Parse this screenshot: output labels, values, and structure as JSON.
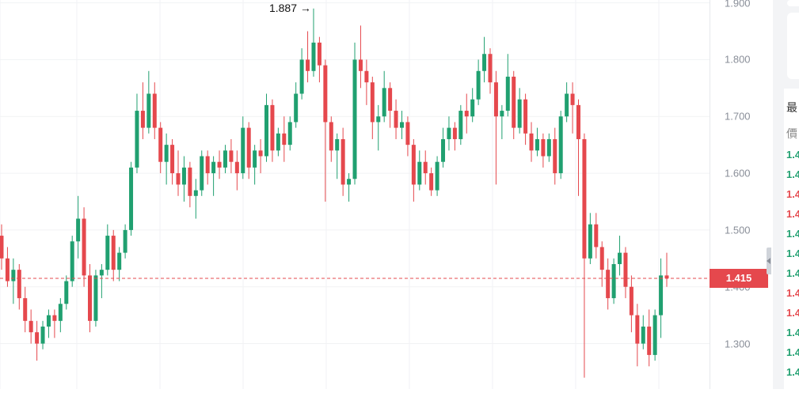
{
  "chart_data": {
    "type": "candlestick",
    "ylim": [
      1.22,
      1.905
    ],
    "grid": true,
    "y_ticks": [
      "1.900",
      "1.800",
      "1.700",
      "1.600",
      "1.500",
      "1.400",
      "1.300"
    ],
    "current_price": "1.415",
    "peak_annotation": "1.887 →",
    "colors": {
      "up": "#20a070",
      "down": "#e5484d"
    },
    "candles": [
      [
        1.49,
        1.51,
        1.43,
        1.45
      ],
      [
        1.45,
        1.47,
        1.4,
        1.41
      ],
      [
        1.41,
        1.45,
        1.37,
        1.43
      ],
      [
        1.43,
        1.44,
        1.36,
        1.38
      ],
      [
        1.38,
        1.4,
        1.32,
        1.34
      ],
      [
        1.34,
        1.36,
        1.3,
        1.32
      ],
      [
        1.32,
        1.34,
        1.27,
        1.3
      ],
      [
        1.3,
        1.34,
        1.29,
        1.33
      ],
      [
        1.33,
        1.36,
        1.31,
        1.35
      ],
      [
        1.35,
        1.36,
        1.31,
        1.34
      ],
      [
        1.34,
        1.38,
        1.32,
        1.37
      ],
      [
        1.37,
        1.42,
        1.36,
        1.41
      ],
      [
        1.41,
        1.49,
        1.4,
        1.48
      ],
      [
        1.48,
        1.56,
        1.45,
        1.52
      ],
      [
        1.52,
        1.54,
        1.4,
        1.42
      ],
      [
        1.42,
        1.44,
        1.32,
        1.34
      ],
      [
        1.34,
        1.43,
        1.33,
        1.42
      ],
      [
        1.42,
        1.44,
        1.38,
        1.43
      ],
      [
        1.43,
        1.51,
        1.42,
        1.49
      ],
      [
        1.49,
        1.5,
        1.41,
        1.43
      ],
      [
        1.43,
        1.47,
        1.41,
        1.46
      ],
      [
        1.46,
        1.51,
        1.45,
        1.5
      ],
      [
        1.5,
        1.62,
        1.49,
        1.61
      ],
      [
        1.61,
        1.74,
        1.6,
        1.71
      ],
      [
        1.71,
        1.76,
        1.66,
        1.68
      ],
      [
        1.68,
        1.78,
        1.67,
        1.74
      ],
      [
        1.74,
        1.76,
        1.66,
        1.68
      ],
      [
        1.68,
        1.69,
        1.6,
        1.62
      ],
      [
        1.62,
        1.67,
        1.58,
        1.65
      ],
      [
        1.65,
        1.66,
        1.58,
        1.6
      ],
      [
        1.6,
        1.64,
        1.56,
        1.58
      ],
      [
        1.58,
        1.63,
        1.55,
        1.61
      ],
      [
        1.61,
        1.62,
        1.54,
        1.56
      ],
      [
        1.56,
        1.59,
        1.52,
        1.57
      ],
      [
        1.57,
        1.64,
        1.56,
        1.63
      ],
      [
        1.63,
        1.64,
        1.58,
        1.6
      ],
      [
        1.6,
        1.63,
        1.56,
        1.62
      ],
      [
        1.62,
        1.64,
        1.59,
        1.61
      ],
      [
        1.61,
        1.65,
        1.6,
        1.64
      ],
      [
        1.64,
        1.66,
        1.6,
        1.62
      ],
      [
        1.62,
        1.64,
        1.57,
        1.6
      ],
      [
        1.6,
        1.7,
        1.59,
        1.68
      ],
      [
        1.68,
        1.69,
        1.59,
        1.61
      ],
      [
        1.61,
        1.65,
        1.58,
        1.64
      ],
      [
        1.64,
        1.66,
        1.6,
        1.63
      ],
      [
        1.63,
        1.74,
        1.62,
        1.72
      ],
      [
        1.72,
        1.73,
        1.62,
        1.64
      ],
      [
        1.64,
        1.68,
        1.63,
        1.67
      ],
      [
        1.67,
        1.7,
        1.62,
        1.65
      ],
      [
        1.65,
        1.7,
        1.64,
        1.69
      ],
      [
        1.69,
        1.76,
        1.68,
        1.74
      ],
      [
        1.74,
        1.82,
        1.73,
        1.8
      ],
      [
        1.8,
        1.85,
        1.76,
        1.78
      ],
      [
        1.78,
        1.89,
        1.77,
        1.83
      ],
      [
        1.83,
        1.84,
        1.76,
        1.79
      ],
      [
        1.79,
        1.8,
        1.55,
        1.69
      ],
      [
        1.69,
        1.7,
        1.62,
        1.64
      ],
      [
        1.64,
        1.67,
        1.59,
        1.66
      ],
      [
        1.66,
        1.68,
        1.56,
        1.58
      ],
      [
        1.58,
        1.6,
        1.55,
        1.59
      ],
      [
        1.59,
        1.83,
        1.58,
        1.8
      ],
      [
        1.8,
        1.86,
        1.75,
        1.78
      ],
      [
        1.78,
        1.8,
        1.72,
        1.76
      ],
      [
        1.76,
        1.77,
        1.66,
        1.69
      ],
      [
        1.69,
        1.72,
        1.64,
        1.7
      ],
      [
        1.7,
        1.78,
        1.69,
        1.75
      ],
      [
        1.75,
        1.76,
        1.68,
        1.71
      ],
      [
        1.71,
        1.73,
        1.66,
        1.68
      ],
      [
        1.68,
        1.71,
        1.66,
        1.69
      ],
      [
        1.69,
        1.7,
        1.63,
        1.65
      ],
      [
        1.65,
        1.66,
        1.55,
        1.58
      ],
      [
        1.58,
        1.64,
        1.57,
        1.62
      ],
      [
        1.62,
        1.64,
        1.58,
        1.6
      ],
      [
        1.6,
        1.61,
        1.56,
        1.57
      ],
      [
        1.57,
        1.63,
        1.56,
        1.62
      ],
      [
        1.62,
        1.68,
        1.61,
        1.66
      ],
      [
        1.66,
        1.7,
        1.64,
        1.68
      ],
      [
        1.68,
        1.69,
        1.64,
        1.66
      ],
      [
        1.66,
        1.72,
        1.65,
        1.71
      ],
      [
        1.71,
        1.74,
        1.67,
        1.7
      ],
      [
        1.7,
        1.75,
        1.69,
        1.73
      ],
      [
        1.73,
        1.8,
        1.72,
        1.78
      ],
      [
        1.78,
        1.84,
        1.76,
        1.81
      ],
      [
        1.81,
        1.82,
        1.74,
        1.76
      ],
      [
        1.76,
        1.78,
        1.58,
        1.7
      ],
      [
        1.7,
        1.72,
        1.66,
        1.71
      ],
      [
        1.71,
        1.81,
        1.7,
        1.77
      ],
      [
        1.77,
        1.78,
        1.66,
        1.68
      ],
      [
        1.68,
        1.75,
        1.67,
        1.73
      ],
      [
        1.73,
        1.74,
        1.65,
        1.67
      ],
      [
        1.67,
        1.69,
        1.62,
        1.64
      ],
      [
        1.64,
        1.68,
        1.63,
        1.66
      ],
      [
        1.66,
        1.67,
        1.61,
        1.63
      ],
      [
        1.63,
        1.67,
        1.62,
        1.66
      ],
      [
        1.66,
        1.68,
        1.58,
        1.6
      ],
      [
        1.6,
        1.71,
        1.59,
        1.7
      ],
      [
        1.7,
        1.76,
        1.69,
        1.74
      ],
      [
        1.74,
        1.76,
        1.67,
        1.72
      ],
      [
        1.72,
        1.73,
        1.56,
        1.66
      ],
      [
        1.66,
        1.67,
        1.24,
        1.45
      ],
      [
        1.45,
        1.53,
        1.44,
        1.51
      ],
      [
        1.51,
        1.53,
        1.45,
        1.47
      ],
      [
        1.47,
        1.48,
        1.4,
        1.43
      ],
      [
        1.43,
        1.45,
        1.36,
        1.38
      ],
      [
        1.38,
        1.45,
        1.37,
        1.44
      ],
      [
        1.44,
        1.49,
        1.42,
        1.46
      ],
      [
        1.46,
        1.47,
        1.38,
        1.4
      ],
      [
        1.4,
        1.42,
        1.32,
        1.35
      ],
      [
        1.35,
        1.37,
        1.26,
        1.3
      ],
      [
        1.3,
        1.35,
        1.29,
        1.33
      ],
      [
        1.33,
        1.36,
        1.26,
        1.28
      ],
      [
        1.28,
        1.36,
        1.27,
        1.35
      ],
      [
        1.35,
        1.45,
        1.31,
        1.42
      ],
      [
        1.42,
        1.46,
        1.4,
        1.415
      ]
    ]
  },
  "side_panel": {
    "header": "最",
    "subheader": "價",
    "prices": [
      {
        "text": "1.4",
        "dir": "up"
      },
      {
        "text": "1.4",
        "dir": "up"
      },
      {
        "text": "1.4",
        "dir": "down"
      },
      {
        "text": "1.4",
        "dir": "down"
      },
      {
        "text": "1.4",
        "dir": "up"
      },
      {
        "text": "1.4",
        "dir": "up"
      },
      {
        "text": "1.4",
        "dir": "up"
      },
      {
        "text": "1.4",
        "dir": "down"
      },
      {
        "text": "1.4",
        "dir": "down"
      },
      {
        "text": "1.4",
        "dir": "up"
      },
      {
        "text": "1.4",
        "dir": "up"
      },
      {
        "text": "1.4",
        "dir": "up"
      }
    ]
  }
}
